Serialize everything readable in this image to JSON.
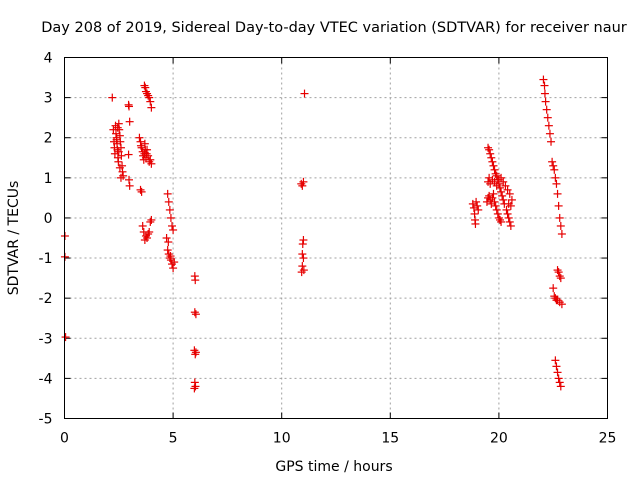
{
  "chart_data": {
    "type": "scatter",
    "title": "Day 208 of 2019, Sidereal Day-to-day VTEC variation (SDTVAR) for receiver naur",
    "xlabel": "GPS time / hours",
    "ylabel": "SDTVAR / TECUs",
    "xlim": [
      0,
      25
    ],
    "ylim": [
      -5,
      4
    ],
    "xticks": [
      "0",
      "5",
      "10",
      "15",
      "20",
      "25"
    ],
    "yticks": [
      "4",
      "3",
      "2",
      "1",
      "0",
      "-1",
      "-2",
      "-3",
      "-4",
      "-5"
    ],
    "grid": true,
    "marker": "plus",
    "marker_color": "#e60000",
    "series": [
      {
        "name": "SDTVAR",
        "points": [
          [
            0.02,
            -0.45
          ],
          [
            0.02,
            -0.97
          ],
          [
            0.05,
            -2.97
          ],
          [
            2.2,
            3.0
          ],
          [
            2.25,
            2.2
          ],
          [
            2.28,
            1.9
          ],
          [
            2.3,
            1.75
          ],
          [
            2.32,
            1.6
          ],
          [
            2.35,
            2.3
          ],
          [
            2.37,
            2.1
          ],
          [
            2.4,
            1.95
          ],
          [
            2.42,
            1.85
          ],
          [
            2.44,
            1.7
          ],
          [
            2.46,
            1.5
          ],
          [
            2.48,
            1.4
          ],
          [
            2.5,
            2.35
          ],
          [
            2.52,
            2.2
          ],
          [
            2.55,
            2.05
          ],
          [
            2.57,
            1.9
          ],
          [
            2.6,
            1.75
          ],
          [
            2.62,
            1.55
          ],
          [
            2.65,
            1.3
          ],
          [
            2.67,
            1.15
          ],
          [
            2.7,
            1.05
          ],
          [
            2.4,
            2.0
          ],
          [
            2.45,
            2.25
          ],
          [
            2.5,
            1.65
          ],
          [
            2.55,
            1.25
          ],
          [
            2.6,
            1.0
          ],
          [
            2.95,
            2.82
          ],
          [
            2.97,
            2.78
          ],
          [
            3.0,
            2.4
          ],
          [
            2.95,
            1.58
          ],
          [
            2.97,
            0.95
          ],
          [
            3.0,
            0.8
          ],
          [
            3.45,
            2.0
          ],
          [
            3.5,
            1.9
          ],
          [
            3.52,
            1.8
          ],
          [
            3.55,
            1.75
          ],
          [
            3.6,
            1.65
          ],
          [
            3.62,
            1.55
          ],
          [
            3.65,
            1.45
          ],
          [
            3.68,
            1.6
          ],
          [
            3.7,
            1.85
          ],
          [
            3.72,
            1.7
          ],
          [
            3.75,
            1.5
          ],
          [
            3.78,
            1.6
          ],
          [
            3.8,
            1.7
          ],
          [
            3.85,
            1.55
          ],
          [
            3.9,
            1.4
          ],
          [
            3.95,
            1.45
          ],
          [
            4.0,
            1.35
          ],
          [
            3.5,
            0.7
          ],
          [
            3.55,
            0.65
          ],
          [
            3.6,
            -0.2
          ],
          [
            3.65,
            -0.35
          ],
          [
            3.7,
            -0.55
          ],
          [
            3.75,
            -0.45
          ],
          [
            3.8,
            -0.5
          ],
          [
            3.85,
            -0.4
          ],
          [
            3.9,
            -0.35
          ],
          [
            3.95,
            -0.1
          ],
          [
            4.0,
            -0.05
          ],
          [
            3.72,
            3.25
          ],
          [
            3.75,
            3.15
          ],
          [
            3.8,
            3.1
          ],
          [
            3.85,
            3.05
          ],
          [
            3.9,
            3.0
          ],
          [
            3.95,
            2.9
          ],
          [
            4.0,
            2.75
          ],
          [
            3.68,
            3.3
          ],
          [
            4.75,
            0.6
          ],
          [
            4.8,
            0.4
          ],
          [
            4.85,
            0.2
          ],
          [
            4.9,
            0.0
          ],
          [
            4.95,
            -0.2
          ],
          [
            5.0,
            -0.3
          ],
          [
            4.7,
            -0.5
          ],
          [
            4.75,
            -0.8
          ],
          [
            4.8,
            -0.9
          ],
          [
            4.85,
            -1.0
          ],
          [
            4.9,
            -1.05
          ],
          [
            4.95,
            -1.15
          ],
          [
            5.0,
            -1.25
          ],
          [
            5.05,
            -1.1
          ],
          [
            4.78,
            -0.6
          ],
          [
            4.88,
            -0.95
          ],
          [
            6.0,
            -1.45
          ],
          [
            6.02,
            -1.55
          ],
          [
            6.0,
            -2.35
          ],
          [
            6.05,
            -2.4
          ],
          [
            5.98,
            -3.3
          ],
          [
            6.02,
            -3.4
          ],
          [
            6.05,
            -3.35
          ],
          [
            6.0,
            -4.1
          ],
          [
            6.03,
            -4.2
          ],
          [
            5.98,
            -4.25
          ],
          [
            10.9,
            0.85
          ],
          [
            10.95,
            0.8
          ],
          [
            11.0,
            0.9
          ],
          [
            11.0,
            -0.55
          ],
          [
            10.97,
            -0.65
          ],
          [
            10.95,
            -0.9
          ],
          [
            11.0,
            -1.0
          ],
          [
            10.95,
            -1.2
          ],
          [
            10.92,
            -1.35
          ],
          [
            11.02,
            -1.3
          ],
          [
            11.05,
            3.1
          ],
          [
            18.8,
            0.35
          ],
          [
            18.85,
            0.25
          ],
          [
            18.88,
            0.1
          ],
          [
            18.9,
            -0.05
          ],
          [
            18.92,
            -0.15
          ],
          [
            18.95,
            0.4
          ],
          [
            19.0,
            0.3
          ],
          [
            19.05,
            0.2
          ],
          [
            19.5,
            1.75
          ],
          [
            19.55,
            1.7
          ],
          [
            19.6,
            1.6
          ],
          [
            19.65,
            1.5
          ],
          [
            19.7,
            1.4
          ],
          [
            19.75,
            1.3
          ],
          [
            19.8,
            1.2
          ],
          [
            19.85,
            1.1
          ],
          [
            19.9,
            1.05
          ],
          [
            19.95,
            0.95
          ],
          [
            20.0,
            0.85
          ],
          [
            20.05,
            0.75
          ],
          [
            20.1,
            0.65
          ],
          [
            20.15,
            0.55
          ],
          [
            20.2,
            0.45
          ],
          [
            20.25,
            0.35
          ],
          [
            19.45,
            0.4
          ],
          [
            19.5,
            0.5
          ],
          [
            19.55,
            0.55
          ],
          [
            19.6,
            0.45
          ],
          [
            19.65,
            0.35
          ],
          [
            19.7,
            0.5
          ],
          [
            19.75,
            0.6
          ],
          [
            19.8,
            0.4
          ],
          [
            19.85,
            0.3
          ],
          [
            19.9,
            0.2
          ],
          [
            19.95,
            0.1
          ],
          [
            20.0,
            0.0
          ],
          [
            20.05,
            -0.05
          ],
          [
            20.1,
            -0.1
          ],
          [
            19.5,
            0.9
          ],
          [
            19.55,
            1.0
          ],
          [
            19.6,
            0.85
          ],
          [
            19.7,
            0.95
          ],
          [
            19.8,
            0.9
          ],
          [
            19.9,
            0.8
          ],
          [
            20.0,
            0.95
          ],
          [
            20.1,
            1.0
          ],
          [
            20.2,
            0.9
          ],
          [
            20.3,
            0.8
          ],
          [
            20.4,
            0.7
          ],
          [
            20.5,
            0.6
          ],
          [
            20.6,
            0.45
          ],
          [
            20.35,
            0.2
          ],
          [
            20.4,
            0.1
          ],
          [
            20.45,
            0.0
          ],
          [
            20.5,
            -0.1
          ],
          [
            20.55,
            -0.2
          ],
          [
            20.45,
            0.35
          ],
          [
            20.55,
            0.3
          ],
          [
            22.05,
            3.45
          ],
          [
            22.1,
            3.3
          ],
          [
            22.12,
            3.1
          ],
          [
            22.15,
            2.9
          ],
          [
            22.2,
            2.7
          ],
          [
            22.25,
            2.5
          ],
          [
            22.3,
            2.3
          ],
          [
            22.35,
            2.1
          ],
          [
            22.4,
            1.9
          ],
          [
            22.45,
            1.4
          ],
          [
            22.5,
            1.3
          ],
          [
            22.55,
            1.2
          ],
          [
            22.6,
            1.0
          ],
          [
            22.65,
            0.85
          ],
          [
            22.7,
            0.6
          ],
          [
            22.75,
            0.3
          ],
          [
            22.8,
            0.0
          ],
          [
            22.85,
            -0.2
          ],
          [
            22.9,
            -0.4
          ],
          [
            22.5,
            -1.75
          ],
          [
            22.55,
            -1.95
          ],
          [
            22.6,
            -2.0
          ],
          [
            22.65,
            -2.05
          ],
          [
            22.7,
            -2.05
          ],
          [
            22.8,
            -2.1
          ],
          [
            22.9,
            -2.15
          ],
          [
            22.7,
            -1.3
          ],
          [
            22.75,
            -1.35
          ],
          [
            22.8,
            -1.45
          ],
          [
            22.85,
            -1.5
          ],
          [
            22.6,
            -3.55
          ],
          [
            22.65,
            -3.7
          ],
          [
            22.7,
            -3.85
          ],
          [
            22.75,
            -4.0
          ],
          [
            22.8,
            -4.1
          ],
          [
            22.85,
            -4.2
          ]
        ]
      }
    ]
  }
}
